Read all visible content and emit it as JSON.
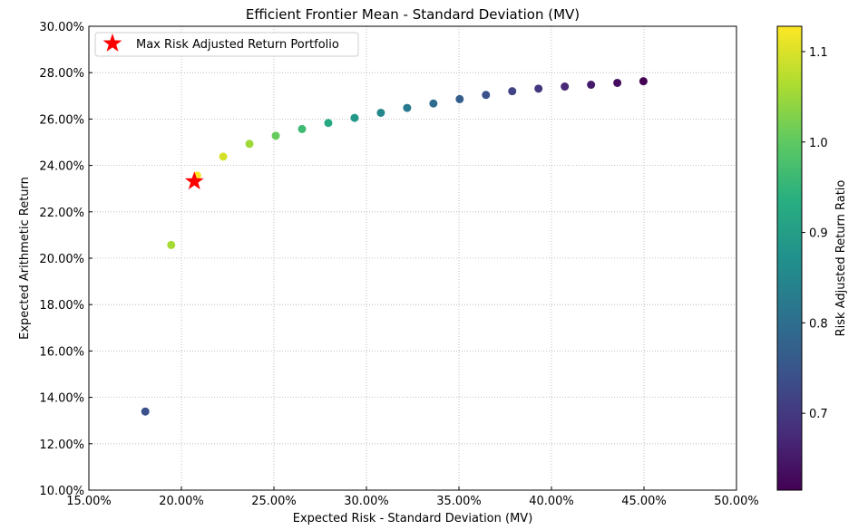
{
  "chart_data": {
    "type": "scatter",
    "title": "Efficient Frontier Mean - Standard Deviation (MV)",
    "xlabel": "Expected Risk - Standard Deviation (MV)",
    "ylabel": "Expected Arithmetic Return",
    "xlim": [
      0.15,
      0.5
    ],
    "ylim": [
      0.1,
      0.3
    ],
    "x_ticks": [
      0.15,
      0.2,
      0.25,
      0.3,
      0.35,
      0.4,
      0.45,
      0.5
    ],
    "x_tick_labels": [
      "15.00%",
      "20.00%",
      "25.00%",
      "30.00%",
      "35.00%",
      "40.00%",
      "45.00%",
      "50.00%"
    ],
    "y_ticks": [
      0.1,
      0.12,
      0.14,
      0.16,
      0.18,
      0.2,
      0.22,
      0.24,
      0.26,
      0.28,
      0.3
    ],
    "y_tick_labels": [
      "10.00%",
      "12.00%",
      "14.00%",
      "16.00%",
      "18.00%",
      "20.00%",
      "22.00%",
      "24.00%",
      "26.00%",
      "28.00%",
      "30.00%"
    ],
    "grid": true,
    "colorbar": {
      "label": "Risk Adjusted Return Ratio",
      "range": [
        0.615,
        1.128
      ],
      "ticks": [
        0.7,
        0.8,
        0.9,
        1.0,
        1.1
      ],
      "tick_labels": [
        "0.7",
        "0.8",
        "0.9",
        "1.0",
        "1.1"
      ],
      "colormap": "viridis"
    },
    "legend": {
      "placement": "top-left",
      "entries": [
        {
          "label": "Max Risk Adjusted Return Portfolio",
          "marker": "star",
          "color": "#ff0000"
        }
      ]
    },
    "series": [
      {
        "name": "Efficient Frontier",
        "points": [
          {
            "x": 0.1805,
            "y": 0.1339,
            "ratio": 0.742
          },
          {
            "x": 0.1945,
            "y": 0.2057,
            "ratio": 1.057
          },
          {
            "x": 0.2085,
            "y": 0.2356,
            "ratio": 1.128
          },
          {
            "x": 0.2226,
            "y": 0.2438,
            "ratio": 1.095
          },
          {
            "x": 0.2368,
            "y": 0.2493,
            "ratio": 1.052
          },
          {
            "x": 0.251,
            "y": 0.2528,
            "ratio": 1.006
          },
          {
            "x": 0.2652,
            "y": 0.2557,
            "ratio": 0.964
          },
          {
            "x": 0.2794,
            "y": 0.2583,
            "ratio": 0.925
          },
          {
            "x": 0.2936,
            "y": 0.2605,
            "ratio": 0.887
          },
          {
            "x": 0.3078,
            "y": 0.2627,
            "ratio": 0.853
          },
          {
            "x": 0.322,
            "y": 0.2648,
            "ratio": 0.822
          },
          {
            "x": 0.3362,
            "y": 0.2667,
            "ratio": 0.793
          },
          {
            "x": 0.3504,
            "y": 0.2686,
            "ratio": 0.767
          },
          {
            "x": 0.3646,
            "y": 0.2704,
            "ratio": 0.742
          },
          {
            "x": 0.3788,
            "y": 0.272,
            "ratio": 0.718
          },
          {
            "x": 0.393,
            "y": 0.2731,
            "ratio": 0.695
          },
          {
            "x": 0.4072,
            "y": 0.274,
            "ratio": 0.673
          },
          {
            "x": 0.4214,
            "y": 0.2748,
            "ratio": 0.652
          },
          {
            "x": 0.4356,
            "y": 0.2756,
            "ratio": 0.633
          },
          {
            "x": 0.4497,
            "y": 0.2763,
            "ratio": 0.615
          }
        ]
      }
    ],
    "highlight": {
      "name": "Max Risk Adjusted Return Portfolio",
      "x": 0.207,
      "y": 0.2331,
      "color": "#ff0000"
    }
  }
}
